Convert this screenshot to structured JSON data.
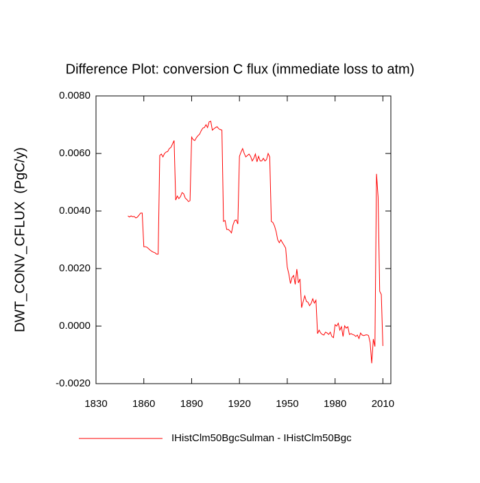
{
  "chart_data": {
    "type": "line",
    "title": "Difference Plot: conversion C flux (immediate loss to atm)",
    "y_label": "DWT_CONV_CFLUX  (PgC/y)",
    "x": [
      1850,
      1851,
      1852,
      1853,
      1854,
      1855,
      1856,
      1857,
      1858,
      1859,
      1860,
      1861,
      1862,
      1863,
      1864,
      1865,
      1866,
      1867,
      1868,
      1869,
      1870,
      1871,
      1872,
      1873,
      1874,
      1875,
      1876,
      1877,
      1878,
      1879,
      1880,
      1881,
      1882,
      1883,
      1884,
      1885,
      1886,
      1887,
      1888,
      1889,
      1890,
      1891,
      1892,
      1893,
      1894,
      1895,
      1896,
      1897,
      1898,
      1899,
      1900,
      1901,
      1902,
      1903,
      1904,
      1905,
      1906,
      1907,
      1908,
      1909,
      1910,
      1911,
      1912,
      1913,
      1914,
      1915,
      1916,
      1917,
      1918,
      1919,
      1920,
      1921,
      1922,
      1923,
      1924,
      1925,
      1926,
      1927,
      1928,
      1929,
      1930,
      1931,
      1932,
      1933,
      1934,
      1935,
      1936,
      1937,
      1938,
      1939,
      1940,
      1941,
      1942,
      1943,
      1944,
      1945,
      1946,
      1947,
      1948,
      1949,
      1950,
      1951,
      1952,
      1953,
      1954,
      1955,
      1956,
      1957,
      1958,
      1959,
      1960,
      1961,
      1962,
      1963,
      1964,
      1965,
      1966,
      1967,
      1968,
      1969,
      1970,
      1971,
      1972,
      1973,
      1974,
      1975,
      1976,
      1977,
      1978,
      1979,
      1980,
      1981,
      1982,
      1983,
      1984,
      1985,
      1986,
      1987,
      1988,
      1989,
      1990,
      1991,
      1992,
      1993,
      1994,
      1995,
      1996,
      1997,
      1998,
      1999,
      2000,
      2001,
      2002,
      2003,
      2004,
      2005,
      2006,
      2007,
      2008,
      2009,
      2010
    ],
    "series": [
      {
        "name": "IHistClm50BgcSulman - IHistClm50Bgc",
        "color": "#ff0000",
        "values": [
          0.00383,
          0.00379,
          0.00383,
          0.0038,
          0.00381,
          0.00376,
          0.00379,
          0.00386,
          0.00393,
          0.00393,
          0.00276,
          0.00276,
          0.00274,
          0.00269,
          0.00264,
          0.0026,
          0.00257,
          0.00255,
          0.0025,
          0.0025,
          0.00593,
          0.00598,
          0.00588,
          0.006,
          0.00605,
          0.00607,
          0.00617,
          0.00621,
          0.00633,
          0.00645,
          0.00438,
          0.00452,
          0.00443,
          0.0045,
          0.00464,
          0.0046,
          0.00445,
          0.0044,
          0.00433,
          0.00436,
          0.00657,
          0.00648,
          0.00645,
          0.00655,
          0.00662,
          0.00667,
          0.00679,
          0.00688,
          0.0069,
          0.007,
          0.0069,
          0.0071,
          0.00712,
          0.00681,
          0.00686,
          0.0069,
          0.00693,
          0.00686,
          0.00683,
          0.00681,
          0.00364,
          0.00367,
          0.00336,
          0.00336,
          0.00331,
          0.00324,
          0.00352,
          0.00367,
          0.00369,
          0.00355,
          0.0059,
          0.00605,
          0.00617,
          0.006,
          0.00588,
          0.00593,
          0.00598,
          0.0059,
          0.00574,
          0.00583,
          0.00598,
          0.00571,
          0.0059,
          0.00574,
          0.00574,
          0.00583,
          0.00574,
          0.00579,
          0.006,
          0.00588,
          0.00364,
          0.0036,
          0.00348,
          0.00329,
          0.003,
          0.0029,
          0.003,
          0.0029,
          0.00281,
          0.00271,
          0.00205,
          0.00181,
          0.00148,
          0.00169,
          0.00176,
          0.00145,
          0.00198,
          0.0015,
          0.00164,
          0.00064,
          0.00086,
          0.00105,
          0.00086,
          0.00083,
          0.00071,
          0.00079,
          0.00095,
          0.0008,
          0.0009,
          -0.00026,
          -0.00014,
          -0.00024,
          -0.00029,
          -0.00031,
          -0.00021,
          -0.00024,
          -0.00029,
          -0.00021,
          -0.00036,
          -0.0004,
          5e-05,
          0,
          0.0001,
          -0.00014,
          -2e-05,
          -0.00036,
          1e-05,
          -7e-05,
          -2e-05,
          -0.00029,
          -0.00026,
          -0.00029,
          -0.00031,
          -0.00036,
          -0.00031,
          -0.00043,
          -0.00024,
          -0.00031,
          -0.00033,
          -0.00031,
          -0.0003,
          -0.00033,
          -0.00057,
          -0.00129,
          -0.00045,
          -0.00071,
          0.00529,
          0.00448,
          0.00121,
          0.0011,
          -0.00069
        ]
      }
    ],
    "xlim": [
      1830,
      2015
    ],
    "xticks": [
      1830,
      1860,
      1890,
      1920,
      1950,
      1980,
      2010
    ],
    "ylim": [
      -0.002,
      0.008
    ],
    "yticks": [
      {
        "value": -0.002,
        "label": "-0.0020"
      },
      {
        "value": 0,
        "label": "0.0000"
      },
      {
        "value": 0.002,
        "label": "0.0020"
      },
      {
        "value": 0.004,
        "label": "0.0040"
      },
      {
        "value": 0.006,
        "label": "0.0060"
      },
      {
        "value": 0.008,
        "label": "0.0080"
      }
    ],
    "grid": false,
    "legend": "bottom"
  }
}
